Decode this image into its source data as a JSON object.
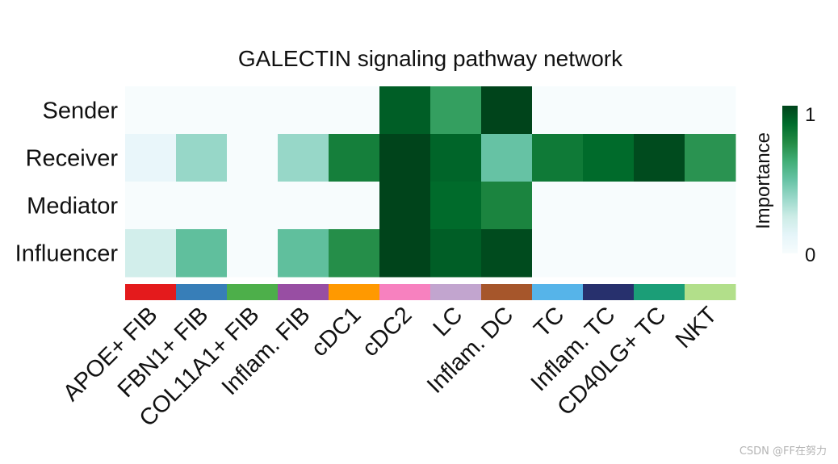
{
  "chart_data": {
    "type": "heatmap",
    "title": "GALECTIN signaling pathway network",
    "rows": [
      "Sender",
      "Receiver",
      "Mediator",
      "Influencer"
    ],
    "columns": [
      "APOE+ FIB",
      "FBN1+ FIB",
      "COL11A1+ FIB",
      "Inflam. FIB",
      "cDC1",
      "cDC2",
      "LC",
      "Inflam. DC",
      "TC",
      "Inflam. TC",
      "CD40LG+ TC",
      "NKT"
    ],
    "values": [
      [
        0,
        0,
        0,
        0,
        0,
        0.92,
        0.68,
        1.0,
        0,
        0,
        0,
        0
      ],
      [
        0.1,
        0.38,
        0,
        0.38,
        0.8,
        1.0,
        0.9,
        0.5,
        0.82,
        0.88,
        0.98,
        0.72
      ],
      [
        0,
        0,
        0,
        0,
        0,
        1.0,
        0.88,
        0.78,
        0,
        0,
        0,
        0
      ],
      [
        0.22,
        0.52,
        0,
        0.52,
        0.74,
        1.0,
        0.92,
        0.98,
        0,
        0,
        0,
        0
      ]
    ],
    "column_colors": [
      "#e41a1c",
      "#377eb8",
      "#4daf4a",
      "#984ea3",
      "#ff9900",
      "#f781bf",
      "#c2a5cf",
      "#a6562b",
      "#56b4e9",
      "#27306d",
      "#1b9e77",
      "#b2df8a"
    ],
    "colorbar": {
      "label": "Importance",
      "min_label": "0",
      "max_label": "1",
      "range": [
        0,
        1
      ]
    },
    "colormap": [
      "#f7fcfd",
      "#e5f5f9",
      "#ccece6",
      "#99d8c9",
      "#66c2a4",
      "#41ae76",
      "#238b45",
      "#006d2c",
      "#00441b"
    ]
  },
  "watermark": "CSDN @FF在努力"
}
